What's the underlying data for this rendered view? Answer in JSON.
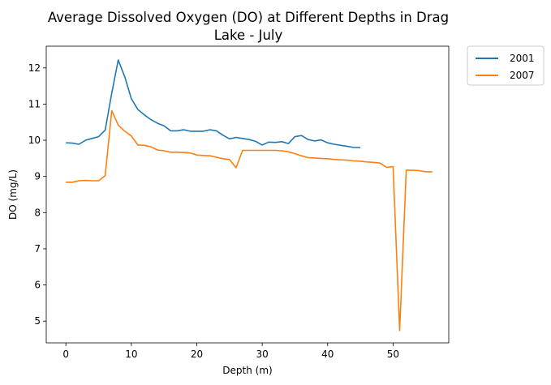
{
  "chart_data": {
    "type": "line",
    "title_lines": [
      "Average Dissolved Oxygen (DO) at Different Depths in Drag",
      "Lake - July"
    ],
    "xlabel": "Depth (m)",
    "ylabel": "DO (mg/L)",
    "xlim": [
      -3,
      58.5
    ],
    "ylim": [
      4.4,
      12.6
    ],
    "xticks": [
      0,
      10,
      20,
      30,
      40,
      50
    ],
    "yticks": [
      5,
      6,
      7,
      8,
      9,
      10,
      11,
      12
    ],
    "grid": false,
    "legend_position": "outside-top-right",
    "series": [
      {
        "name": "2001",
        "color": "#1f77b4",
        "x": [
          0,
          1,
          2,
          3,
          4,
          5,
          6,
          7,
          8,
          9,
          10,
          11,
          12,
          13,
          14,
          15,
          16,
          17,
          18,
          19,
          20,
          21,
          22,
          23,
          24,
          25,
          26,
          27,
          28,
          29,
          30,
          31,
          32,
          33,
          34,
          35,
          36,
          37,
          38,
          39,
          40,
          41,
          42,
          43,
          44,
          45
        ],
        "y": [
          9.93,
          9.92,
          9.89,
          10.0,
          10.05,
          10.1,
          10.28,
          11.3,
          12.22,
          11.75,
          11.15,
          10.85,
          10.7,
          10.57,
          10.47,
          10.4,
          10.26,
          10.26,
          10.29,
          10.25,
          10.25,
          10.25,
          10.29,
          10.26,
          10.14,
          10.04,
          10.08,
          10.05,
          10.02,
          9.97,
          9.87,
          9.95,
          9.94,
          9.96,
          9.91,
          10.1,
          10.13,
          10.02,
          9.98,
          10.01,
          9.93,
          9.89,
          9.86,
          9.83,
          9.8,
          9.8
        ]
      },
      {
        "name": "2007",
        "color": "#ff7f0e",
        "x": [
          0,
          1,
          2,
          3,
          4,
          5,
          6,
          7,
          8,
          9,
          10,
          11,
          12,
          13,
          14,
          15,
          16,
          17,
          18,
          19,
          20,
          21,
          22,
          23,
          24,
          25,
          26,
          27,
          28,
          29,
          30,
          31,
          32,
          33,
          34,
          35,
          36,
          37,
          38,
          39,
          40,
          41,
          42,
          43,
          44,
          45,
          46,
          47,
          48,
          49,
          50,
          51,
          52,
          53,
          54,
          55,
          56
        ],
        "y": [
          8.84,
          8.84,
          8.88,
          8.89,
          8.88,
          8.88,
          9.02,
          10.82,
          10.42,
          10.25,
          10.12,
          9.87,
          9.86,
          9.82,
          9.73,
          9.71,
          9.67,
          9.67,
          9.66,
          9.65,
          9.59,
          9.58,
          9.57,
          9.53,
          9.49,
          9.47,
          9.24,
          9.72,
          9.72,
          9.72,
          9.72,
          9.72,
          9.72,
          9.71,
          9.68,
          9.63,
          9.57,
          9.52,
          9.51,
          9.5,
          9.49,
          9.47,
          9.46,
          9.45,
          9.43,
          9.42,
          9.4,
          9.39,
          9.37,
          9.25,
          9.27,
          4.74,
          9.17,
          9.17,
          9.16,
          9.13,
          9.13
        ]
      }
    ]
  }
}
